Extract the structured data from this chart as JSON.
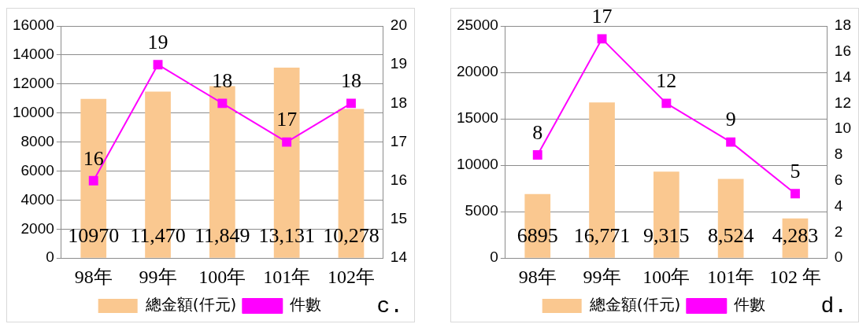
{
  "chart_data": [
    {
      "type": "bar",
      "categories": [
        "98年",
        "99年",
        "100年",
        "101年",
        "102年"
      ],
      "series": [
        {
          "name": "總金額(仟元)",
          "color": "#fac890",
          "values": [
            10970,
            11470,
            11849,
            13131,
            10278
          ],
          "value_labels": [
            "10970",
            "11,470",
            "11,849",
            "13,131",
            "10,278"
          ]
        },
        {
          "type": "line",
          "name": "件數",
          "color": "#ff00ff",
          "axis": "y2",
          "values": [
            16,
            19,
            18,
            17,
            18
          ],
          "value_labels": [
            "16",
            "19",
            "18",
            "17",
            "18"
          ]
        }
      ],
      "ylim": [
        0,
        16000
      ],
      "yticks": [
        0,
        2000,
        4000,
        6000,
        8000,
        10000,
        12000,
        14000,
        16000
      ],
      "y2lim": [
        14,
        20
      ],
      "y2ticks": [
        14,
        15,
        16,
        17,
        18,
        19,
        20
      ],
      "grid": "y",
      "legend": "bottom",
      "marker": "square",
      "annotations": [
        "c."
      ]
    },
    {
      "type": "bar",
      "categories": [
        "98年",
        "99年",
        "100年",
        "101年",
        "102 年"
      ],
      "series": [
        {
          "name": "總金額(仟元)",
          "color": "#fac890",
          "values": [
            6895,
            16771,
            9315,
            8524,
            4283
          ],
          "value_labels": [
            "6895",
            "16,771",
            "9,315",
            "8,524",
            "4,283"
          ]
        },
        {
          "type": "line",
          "name": "件數",
          "color": "#ff00ff",
          "axis": "y2",
          "values": [
            8,
            17,
            12,
            9,
            5
          ],
          "value_labels": [
            "8",
            "17",
            "12",
            "9",
            "5"
          ]
        }
      ],
      "ylim": [
        0,
        25000
      ],
      "yticks": [
        0,
        5000,
        10000,
        15000,
        20000,
        25000
      ],
      "y2lim": [
        0,
        18
      ],
      "y2ticks": [
        0,
        2,
        4,
        6,
        8,
        10,
        12,
        14,
        16,
        18
      ],
      "grid": "y",
      "legend": "bottom",
      "marker": "square",
      "annotations": [
        "d."
      ]
    }
  ]
}
